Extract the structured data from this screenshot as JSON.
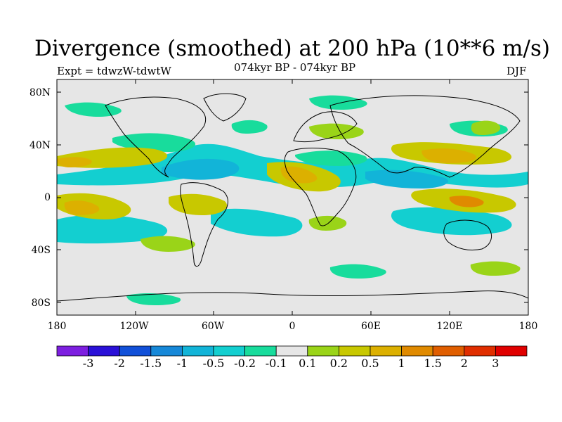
{
  "title": "Divergence (smoothed) at 200 hPa (10**6 m/s)",
  "subtitle_left": "Expt = tdwzW-tdwtW",
  "subtitle_center": "074kyr BP - 074kyr BP",
  "subtitle_right": "DJF",
  "lat_labels": [
    "80N",
    "40N",
    "0",
    "40S",
    "80S"
  ],
  "lon_labels": [
    "180",
    "120W",
    "60W",
    "0",
    "60E",
    "120E",
    "180"
  ],
  "colorbar": {
    "colors": [
      "#7d1fe0",
      "#2a10d8",
      "#1150d8",
      "#1688d8",
      "#12b4d8",
      "#13cfd0",
      "#18dc9c",
      "#e6e6e6",
      "#9ad418",
      "#c8c800",
      "#dcb000",
      "#e08a00",
      "#e05e00",
      "#e02e00",
      "#e00000"
    ],
    "labels": [
      "-3",
      "-2",
      "-1.5",
      "-1",
      "-0.5",
      "-0.2",
      "-0.1",
      "0.1",
      "0.2",
      "0.5",
      "1",
      "1.5",
      "2",
      "3"
    ]
  },
  "map_colors": {
    "background": "#e6e6e6",
    "neg_weak": "#18dc9c",
    "neg_mid": "#13cfd0",
    "neg_strong": "#12b4d8",
    "pos_weak": "#9ad418",
    "pos_mid": "#c8c800",
    "pos_strong": "#dcb000",
    "pos_vstrong": "#e08a00"
  }
}
